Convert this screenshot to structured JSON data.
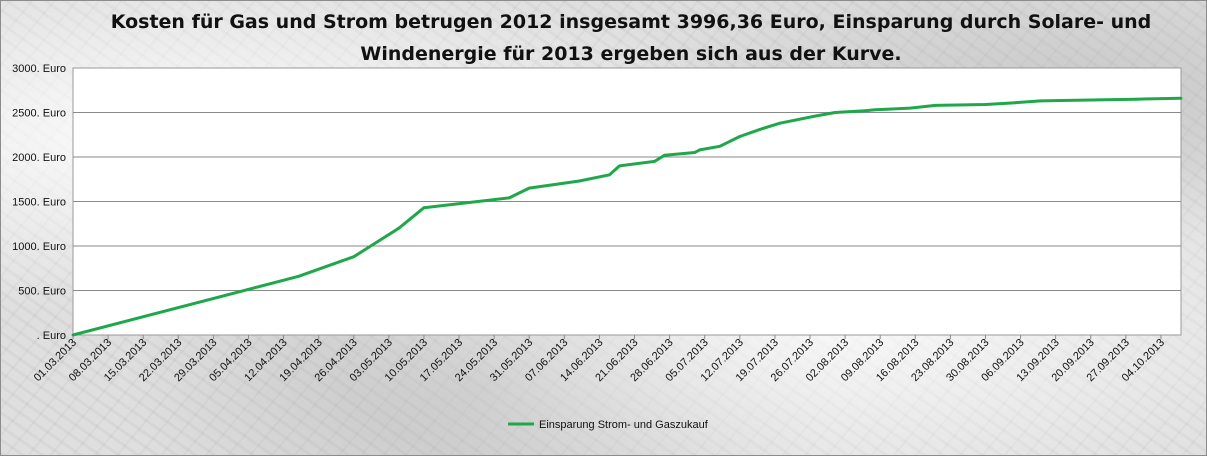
{
  "chart_data": {
    "type": "line",
    "title_lines": [
      "Kosten für Gas und Strom betrugen 2012 insgesamt 3996,36 Euro, Einsparung durch Solare- und",
      "Windenergie für 2013 ergeben sich aus der Kurve."
    ],
    "xlabel": "",
    "ylabel": "",
    "ylim": [
      0,
      3000
    ],
    "yticks": [
      {
        "value": 0,
        "label": ". Euro"
      },
      {
        "value": 500,
        "label": "500. Euro"
      },
      {
        "value": 1000,
        "label": "1000. Euro"
      },
      {
        "value": 1500,
        "label": "1500. Euro"
      },
      {
        "value": 2000,
        "label": "2000. Euro"
      },
      {
        "value": 2500,
        "label": "2500. Euro"
      },
      {
        "value": 3000,
        "label": "3000. Euro"
      }
    ],
    "x_range": [
      "01.03.2013",
      "08.10.2013"
    ],
    "xticks": [
      "01.03.2013",
      "08.03.2013",
      "15.03.2013",
      "22.03.2013",
      "29.03.2013",
      "05.04.2013",
      "12.04.2013",
      "19.04.2013",
      "26.04.2013",
      "03.05.2013",
      "10.05.2013",
      "17.05.2013",
      "24.05.2013",
      "31.05.2013",
      "07.06.2013",
      "14.06.2013",
      "21.06.2013",
      "28.06.2013",
      "05.07.2013",
      "12.07.2013",
      "19.07.2013",
      "26.07.2013",
      "02.08.2013",
      "09.08.2013",
      "16.08.2013",
      "23.08.2013",
      "30.08.2013",
      "06.09.2013",
      "13.09.2013",
      "20.09.2013",
      "27.09.2013",
      "04.10.2013"
    ],
    "grid": true,
    "legend_position": "bottom",
    "series": [
      {
        "name": "Einsparung Strom- und Gaszukauf",
        "color": "#1fa84a",
        "points": [
          {
            "x": "01.03.2013",
            "y": 0
          },
          {
            "x": "15.04.2013",
            "y": 660
          },
          {
            "x": "26.04.2013",
            "y": 880
          },
          {
            "x": "05.05.2013",
            "y": 1200
          },
          {
            "x": "10.05.2013",
            "y": 1430
          },
          {
            "x": "27.05.2013",
            "y": 1540
          },
          {
            "x": "31.05.2013",
            "y": 1650
          },
          {
            "x": "10.06.2013",
            "y": 1730
          },
          {
            "x": "16.06.2013",
            "y": 1800
          },
          {
            "x": "18.06.2013",
            "y": 1900
          },
          {
            "x": "25.06.2013",
            "y": 1950
          },
          {
            "x": "27.06.2013",
            "y": 2020
          },
          {
            "x": "03.07.2013",
            "y": 2050
          },
          {
            "x": "04.07.2013",
            "y": 2080
          },
          {
            "x": "08.07.2013",
            "y": 2120
          },
          {
            "x": "12.07.2013",
            "y": 2230
          },
          {
            "x": "16.07.2013",
            "y": 2310
          },
          {
            "x": "20.07.2013",
            "y": 2380
          },
          {
            "x": "27.07.2013",
            "y": 2460
          },
          {
            "x": "31.07.2013",
            "y": 2500
          },
          {
            "x": "06.08.2013",
            "y": 2520
          },
          {
            "x": "08.08.2013",
            "y": 2530
          },
          {
            "x": "15.08.2013",
            "y": 2550
          },
          {
            "x": "20.08.2013",
            "y": 2580
          },
          {
            "x": "30.08.2013",
            "y": 2590
          },
          {
            "x": "05.09.2013",
            "y": 2610
          },
          {
            "x": "10.09.2013",
            "y": 2630
          },
          {
            "x": "20.09.2013",
            "y": 2640
          },
          {
            "x": "29.09.2013",
            "y": 2650
          },
          {
            "x": "08.10.2013",
            "y": 2660
          }
        ]
      }
    ]
  }
}
